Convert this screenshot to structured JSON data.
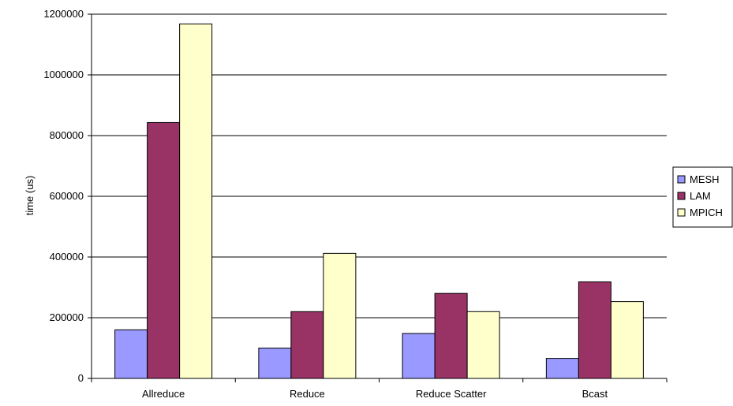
{
  "chart_data": {
    "type": "bar",
    "title": "",
    "xlabel": "",
    "ylabel": "time (us)",
    "categories": [
      "Allreduce",
      "Reduce",
      "Reduce Scatter",
      "Bcast"
    ],
    "series": [
      {
        "name": "MESH",
        "color": "#9999ff",
        "values": [
          160000,
          100000,
          148000,
          66000
        ]
      },
      {
        "name": "LAM",
        "color": "#993366",
        "values": [
          843000,
          220000,
          280000,
          318000
        ]
      },
      {
        "name": "MPICH",
        "color": "#ffffcc",
        "values": [
          1168000,
          412000,
          220000,
          253000
        ]
      }
    ],
    "ylim": [
      0,
      1200000
    ],
    "yticks": [
      "0",
      "200000",
      "400000",
      "600000",
      "800000",
      "1000000",
      "1200000"
    ],
    "grid": true,
    "legend_position": "right"
  }
}
